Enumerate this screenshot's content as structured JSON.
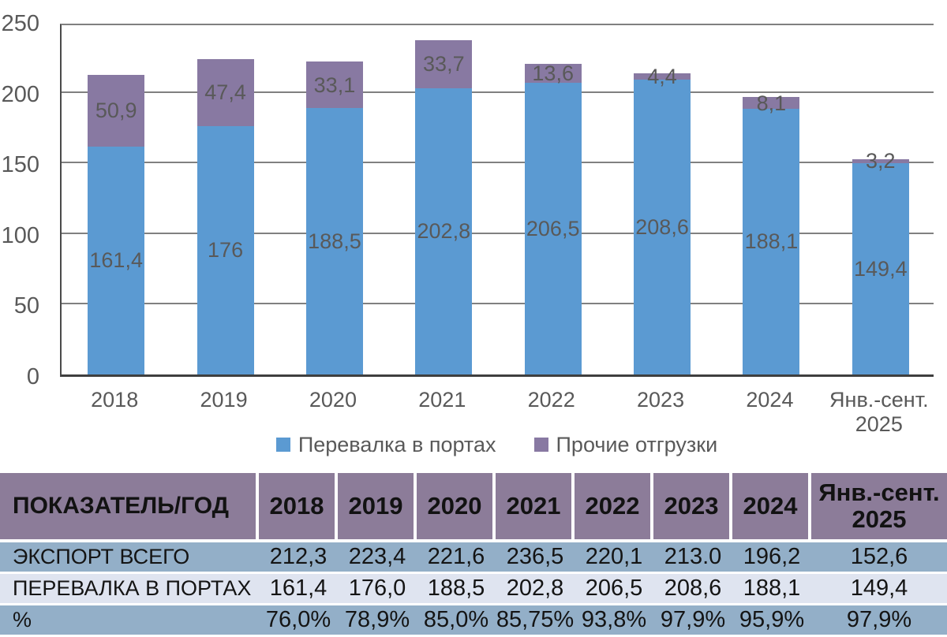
{
  "colors": {
    "bar_ports": "#5B9AD2",
    "bar_other": "#8879A2",
    "table_header_bg": "#8C7C99",
    "table_row_blue": "#93AFC8",
    "table_row_light": "#DFE4F0",
    "gridline": "#808080",
    "axis": "#3F3F3F",
    "chart_text": "#595959",
    "table_text": "#141414"
  },
  "chart_data": {
    "type": "bar",
    "stacked": true,
    "grid": true,
    "legend_position": "bottom",
    "categories": [
      "2018",
      "2019",
      "2020",
      "2021",
      "2022",
      "2023",
      "2024",
      "Янв.-сент. 2025"
    ],
    "series": [
      {
        "name": "Перевалка в портах",
        "color": "#5B9AD2",
        "values": [
          161.4,
          176,
          188.5,
          202.8,
          206.5,
          208.6,
          188.1,
          149.4
        ],
        "labels": [
          "161,4",
          "176",
          "188,5",
          "202,8",
          "206,5",
          "208,6",
          "188,1",
          "149,4"
        ]
      },
      {
        "name": "Прочие отгрузки",
        "color": "#8879A2",
        "values": [
          50.9,
          47.4,
          33.1,
          33.7,
          13.6,
          4.4,
          8.1,
          3.2
        ],
        "labels": [
          "50,9",
          "47,4",
          "33,1",
          "33,7",
          "13,6",
          "4,4",
          "8,1",
          "3,2"
        ]
      }
    ],
    "ylim": [
      0,
      250
    ],
    "ytick_step": 50,
    "yticks": [
      "0",
      "50",
      "100",
      "150",
      "200",
      "250"
    ]
  },
  "table": {
    "header": [
      "ПОКАЗАТЕЛЬ/ГОД",
      "2018",
      "2019",
      "2020",
      "2021",
      "2022",
      "2023",
      "2024",
      "Янв.-сент. 2025"
    ],
    "rows": [
      {
        "label": "ЭКСПОРТ ВСЕГО",
        "values": [
          "212,3",
          "223,4",
          "221,6",
          "236,5",
          "220,1",
          "213.0",
          "196,2",
          "152,6"
        ]
      },
      {
        "label": "ПЕРЕВАЛКА В ПОРТАХ",
        "values": [
          "161,4",
          "176,0",
          "188,5",
          "202,8",
          "206,5",
          "208,6",
          "188,1",
          "149,4"
        ]
      },
      {
        "label": "%",
        "values": [
          "76,0%",
          "78,9%",
          "85,0%",
          "85,75%",
          "93,8%",
          "97,9%",
          "95,9%",
          "97,9%"
        ]
      }
    ]
  }
}
